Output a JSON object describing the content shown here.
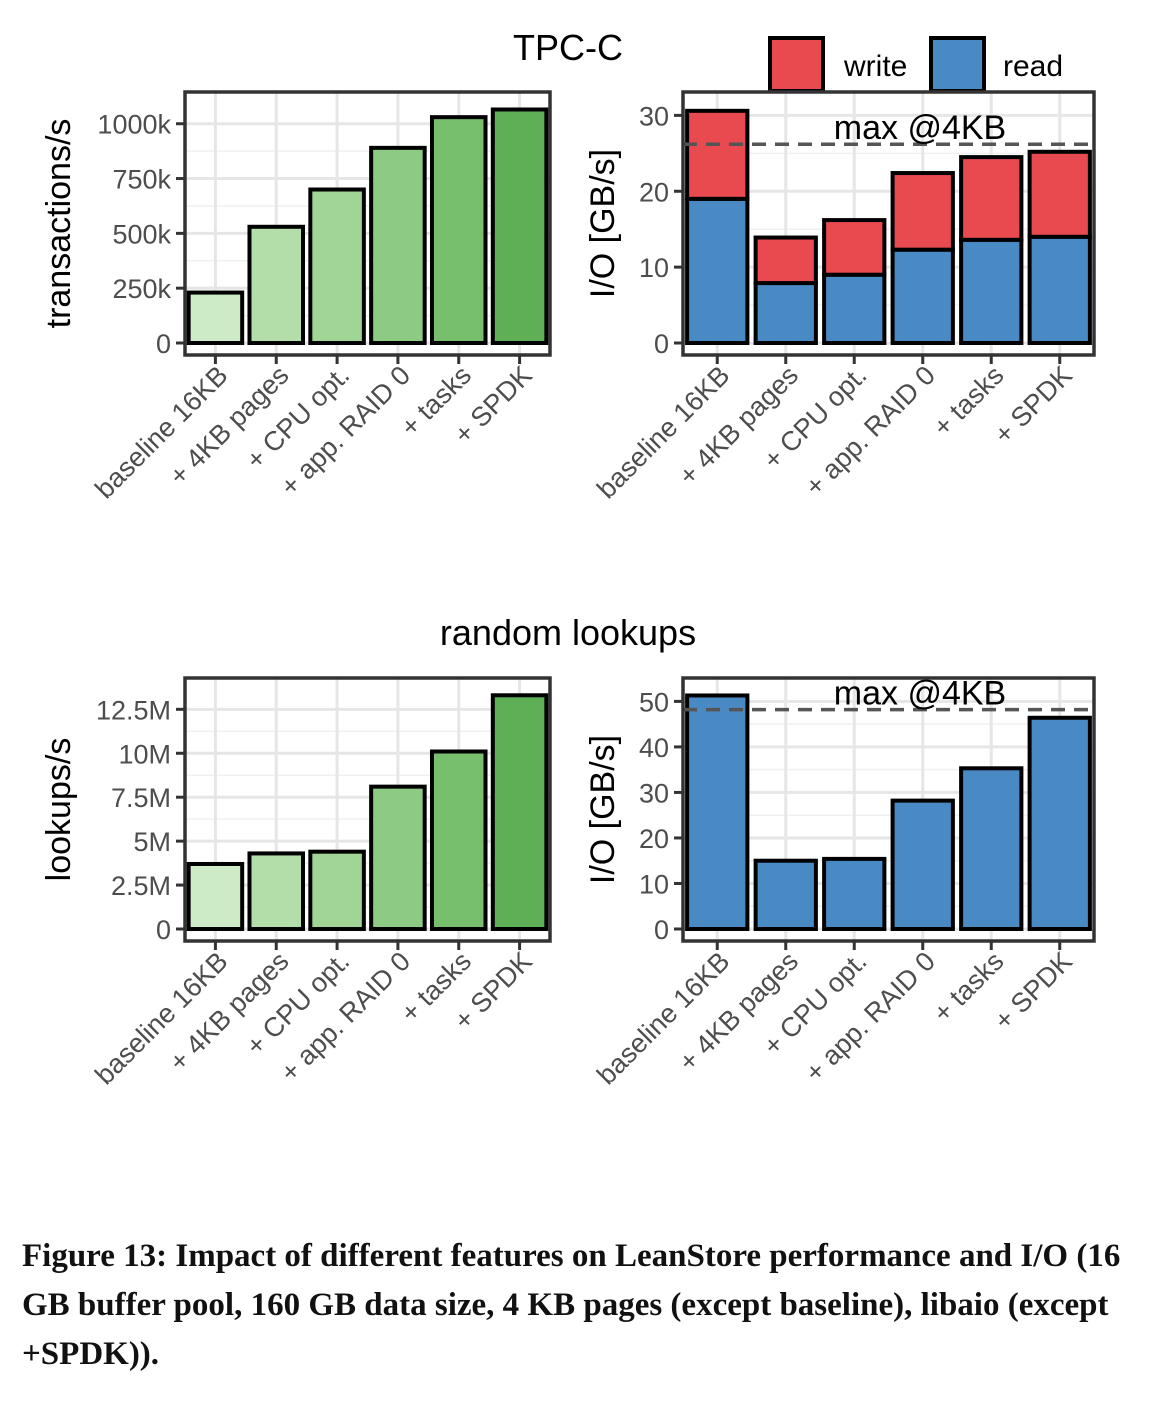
{
  "figure": {
    "caption": "Figure 13: Impact of different features on LeanStore performance and I/O (16 GB buffer pool, 160 GB data size, 4 KB pages (except baseline), libaio (except +SPDK))."
  },
  "groups": [
    {
      "title": "TPC-C"
    },
    {
      "title": "random lookups"
    }
  ],
  "legend": {
    "items": [
      {
        "label": "write",
        "color": "#E84A4F"
      },
      {
        "label": "read",
        "color": "#4A8AC4"
      }
    ],
    "placement": "top-right"
  },
  "chart_data": [
    {
      "id": "tpcc-throughput",
      "type": "bar",
      "group": "TPC-C",
      "categories": [
        "baseline 16KB",
        "+ 4KB pages",
        "+ CPU opt.",
        "+ app. RAID 0",
        "+ tasks",
        "+ SPDK"
      ],
      "values": [
        230000,
        530000,
        700000,
        890000,
        1030000,
        1065000
      ],
      "colors": [
        "#CDEBC6",
        "#B3DEA9",
        "#A0D595",
        "#8DCB85",
        "#77BE6D",
        "#5FAF57"
      ],
      "xlabel": "",
      "ylabel": "transactions/s",
      "ylim": [
        0,
        1090000
      ],
      "yticks": [
        0,
        250000,
        500000,
        750000,
        1000000
      ],
      "yticklabels": [
        "0",
        "250k",
        "500k",
        "750k",
        "1000k"
      ],
      "grid": true
    },
    {
      "id": "tpcc-io",
      "type": "bar",
      "stacked": true,
      "group": "TPC-C",
      "categories": [
        "baseline 16KB",
        "+ 4KB pages",
        "+ CPU opt.",
        "+ app. RAID 0",
        "+ tasks",
        "+ SPDK"
      ],
      "series": [
        {
          "name": "read",
          "color": "#4A8AC4",
          "values": [
            19.0,
            7.9,
            9.0,
            12.3,
            13.6,
            14.0
          ]
        },
        {
          "name": "write",
          "color": "#E84A4F",
          "values": [
            11.6,
            6.0,
            7.2,
            10.1,
            10.9,
            11.2
          ]
        }
      ],
      "reference_line": {
        "value": 26.2,
        "label": "max @4KB"
      },
      "xlabel": "",
      "ylabel": "I/O [GB/s]",
      "ylim": [
        0,
        31.5
      ],
      "yticks": [
        0,
        10,
        20,
        30
      ],
      "yticklabels": [
        "0",
        "10",
        "20",
        "30"
      ],
      "grid": true
    },
    {
      "id": "lookups-throughput",
      "type": "bar",
      "group": "random lookups",
      "categories": [
        "baseline 16KB",
        "+ 4KB pages",
        "+ CPU opt.",
        "+ app. RAID 0",
        "+ tasks",
        "+ SPDK"
      ],
      "values": [
        3700000,
        4300000,
        4400000,
        8100000,
        10100000,
        13300000
      ],
      "colors": [
        "#CDEBC6",
        "#B3DEA9",
        "#A0D595",
        "#8DCB85",
        "#77BE6D",
        "#5FAF57"
      ],
      "xlabel": "",
      "ylabel": "lookups/s",
      "ylim": [
        0,
        13600000
      ],
      "yticks": [
        0,
        2500000,
        5000000,
        7500000,
        10000000,
        12500000
      ],
      "yticklabels": [
        "0",
        "2.5M",
        "5M",
        "7.5M",
        "10M",
        "12.5M"
      ],
      "grid": true
    },
    {
      "id": "lookups-io",
      "type": "bar",
      "group": "random lookups",
      "categories": [
        "baseline 16KB",
        "+ 4KB pages",
        "+ CPU opt.",
        "+ app. RAID 0",
        "+ tasks",
        "+ SPDK"
      ],
      "values": [
        51.3,
        15.0,
        15.4,
        28.2,
        35.3,
        46.4
      ],
      "colors": [
        "#4A8AC4",
        "#4A8AC4",
        "#4A8AC4",
        "#4A8AC4",
        "#4A8AC4",
        "#4A8AC4"
      ],
      "reference_line": {
        "value": 48.2,
        "label": "max @4KB"
      },
      "xlabel": "",
      "ylabel": "I/O [GB/s]",
      "ylim": [
        0,
        52.5
      ],
      "yticks": [
        0,
        10,
        20,
        30,
        40,
        50
      ],
      "yticklabels": [
        "0",
        "10",
        "20",
        "30",
        "40",
        "50"
      ],
      "grid": true
    }
  ]
}
